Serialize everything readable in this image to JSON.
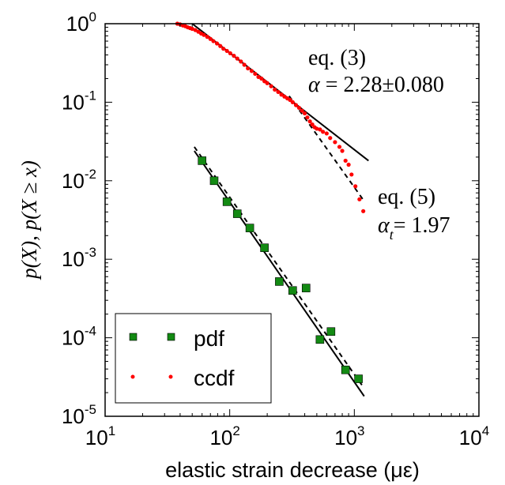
{
  "chart_data": {
    "type": "scatter",
    "x_scale": "log",
    "y_scale": "log",
    "xlim": [
      10,
      10000
    ],
    "ylim": [
      1e-05,
      1
    ],
    "xlabel": "elastic strain decrease (με)",
    "ylabel": "p(X), p(X ≥ x)",
    "x_ticks": [
      {
        "base": "10",
        "exp": "1",
        "value": 10
      },
      {
        "base": "10",
        "exp": "2",
        "value": 100
      },
      {
        "base": "10",
        "exp": "3",
        "value": 1000
      },
      {
        "base": "10",
        "exp": "4",
        "value": 10000
      }
    ],
    "y_ticks": [
      {
        "base": "10",
        "exp": "-5",
        "value": 1e-05
      },
      {
        "base": "10",
        "exp": "-4",
        "value": 0.0001
      },
      {
        "base": "10",
        "exp": "-3",
        "value": 0.001
      },
      {
        "base": "10",
        "exp": "-2",
        "value": 0.01
      },
      {
        "base": "10",
        "exp": "-1",
        "value": 0.1
      },
      {
        "base": "10",
        "exp": "0",
        "value": 1
      }
    ],
    "grid": false,
    "legend_position": "bottom-left",
    "series": [
      {
        "name": "pdf",
        "marker": "square",
        "color": "#138a13",
        "points": [
          [
            60,
            0.018
          ],
          [
            75,
            0.01
          ],
          [
            95,
            0.0054
          ],
          [
            115,
            0.0038
          ],
          [
            145,
            0.0025
          ],
          [
            190,
            0.0014
          ],
          [
            250,
            0.00052
          ],
          [
            320,
            0.0004
          ],
          [
            410,
            0.00043
          ],
          [
            530,
            9.5e-05
          ],
          [
            650,
            0.00012
          ],
          [
            850,
            3.9e-05
          ],
          [
            1080,
            3e-05
          ]
        ]
      },
      {
        "name": "ccdf",
        "marker": "dot",
        "color": "#ff0000",
        "points": [
          [
            38,
            1.0
          ],
          [
            40,
            0.98
          ],
          [
            42,
            0.95
          ],
          [
            44,
            0.93
          ],
          [
            46,
            0.9
          ],
          [
            48,
            0.88
          ],
          [
            50,
            0.86
          ],
          [
            53,
            0.83
          ],
          [
            56,
            0.79
          ],
          [
            59,
            0.75
          ],
          [
            62,
            0.72
          ],
          [
            66,
            0.68
          ],
          [
            70,
            0.64
          ],
          [
            74,
            0.6
          ],
          [
            79,
            0.56
          ],
          [
            84,
            0.52
          ],
          [
            89,
            0.48
          ],
          [
            95,
            0.45
          ],
          [
            101,
            0.42
          ],
          [
            108,
            0.39
          ],
          [
            115,
            0.36
          ],
          [
            123,
            0.33
          ],
          [
            131,
            0.3
          ],
          [
            140,
            0.27
          ],
          [
            150,
            0.25
          ],
          [
            160,
            0.23
          ],
          [
            170,
            0.21
          ],
          [
            180,
            0.2
          ],
          [
            190,
            0.185
          ],
          [
            200,
            0.175
          ],
          [
            215,
            0.16
          ],
          [
            230,
            0.145
          ],
          [
            245,
            0.135
          ],
          [
            260,
            0.125
          ],
          [
            275,
            0.118
          ],
          [
            290,
            0.112
          ],
          [
            305,
            0.107
          ],
          [
            320,
            0.1
          ],
          [
            340,
            0.092
          ],
          [
            360,
            0.085
          ],
          [
            380,
            0.078
          ],
          [
            400,
            0.072
          ],
          [
            420,
            0.064
          ],
          [
            440,
            0.057
          ],
          [
            460,
            0.052
          ],
          [
            480,
            0.048
          ],
          [
            500,
            0.046
          ],
          [
            530,
            0.045
          ],
          [
            560,
            0.042
          ],
          [
            600,
            0.04
          ],
          [
            640,
            0.035
          ],
          [
            700,
            0.031
          ],
          [
            760,
            0.027
          ],
          [
            800,
            0.024
          ],
          [
            850,
            0.018
          ],
          [
            900,
            0.016
          ],
          [
            950,
            0.012
          ],
          [
            1020,
            0.0085
          ],
          [
            1100,
            0.0058
          ],
          [
            1180,
            0.0041
          ]
        ]
      }
    ],
    "fit_lines": [
      {
        "label": "eq. (3) fit",
        "style": "solid",
        "x": [
          50,
          1300
        ],
        "y": [
          1.0,
          0.018
        ]
      },
      {
        "label": "eq. (5) fit",
        "style": "dashed",
        "x": [
          300,
          1200
        ],
        "y": [
          0.12,
          0.0055
        ]
      },
      {
        "label": "pdf fit",
        "style": "solid",
        "x": [
          52,
          1200
        ],
        "y": [
          0.024,
          1.8e-05
        ]
      },
      {
        "label": "pdf fit dashed",
        "style": "dashed",
        "x": [
          52,
          1150
        ],
        "y": [
          0.027,
          2.5e-05
        ]
      }
    ],
    "annotations": {
      "eq3_label": "eq. (3)",
      "eq3_alpha_symbol": "α",
      "eq3_alpha_value": " = 2.28±0.080",
      "eq5_label": "eq. (5)",
      "eq5_alpha_symbol": "α",
      "eq5_alpha_sub": "t",
      "eq5_alpha_value": "= 1.97"
    },
    "legend": [
      {
        "label": "pdf",
        "marker": "square",
        "color": "#138a13"
      },
      {
        "label": "ccdf",
        "marker": "dot",
        "color": "#ff0000"
      }
    ]
  }
}
